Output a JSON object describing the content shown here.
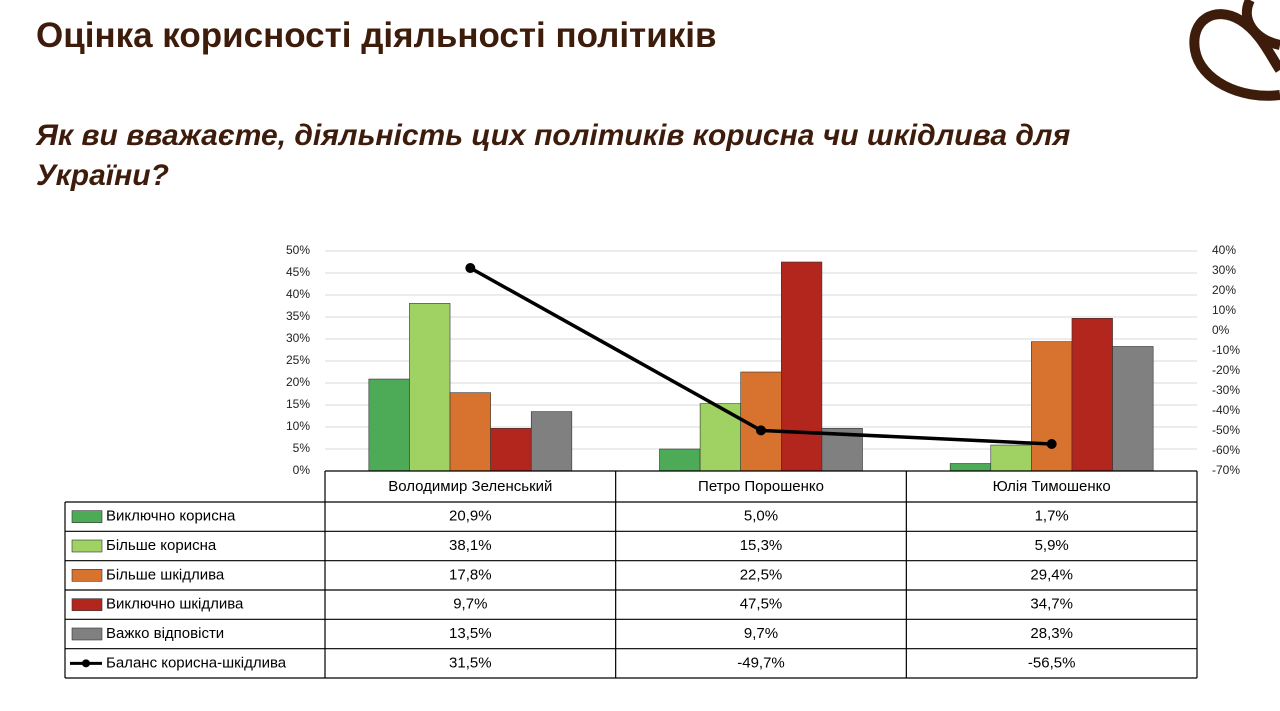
{
  "chart_data": {
    "type": "bar",
    "title": "Оцінка корисності діяльності політиків",
    "subtitle": "Як ви вважаєте, діяльність цих політиків корисна чи шкідлива для України?",
    "categories": [
      "Володимир Зеленський",
      "Петро Порошенко",
      "Юлія Тимошенко"
    ],
    "series": [
      {
        "name": "Виключно корисна",
        "color": "#4dab57",
        "values": [
          20.9,
          5.0,
          1.7
        ],
        "value_labels": [
          "20,9%",
          "5,0%",
          "1,7%"
        ]
      },
      {
        "name": "Більше корисна",
        "color": "#9fd163",
        "values": [
          38.1,
          15.3,
          5.9
        ],
        "value_labels": [
          "38,1%",
          "15,3%",
          "5,9%"
        ]
      },
      {
        "name": "Більше шкідлива",
        "color": "#d8732f",
        "values": [
          17.8,
          22.5,
          29.4
        ],
        "value_labels": [
          "17,8%",
          "22,5%",
          "29,4%"
        ]
      },
      {
        "name": "Виключно шкідлива",
        "color": "#b3261e",
        "values": [
          9.7,
          47.5,
          34.7
        ],
        "value_labels": [
          "9,7%",
          "47,5%",
          "34,7%"
        ]
      },
      {
        "name": "Важко відповісти",
        "color": "#808080",
        "values": [
          13.5,
          9.7,
          28.3
        ],
        "value_labels": [
          "13,5%",
          "9,7%",
          "28,3%"
        ]
      },
      {
        "name": "Баланс корисна-шкідлива",
        "color": "#000000",
        "type": "line",
        "axis": "y2",
        "values": [
          31.5,
          -49.7,
          -56.5
        ],
        "value_labels": [
          "31,5%",
          "-49,7%",
          "-56,5%"
        ]
      }
    ],
    "ylim": [
      0,
      50
    ],
    "yticks": [
      {
        "value": 0,
        "label": "0%"
      },
      {
        "value": 5,
        "label": "5%"
      },
      {
        "value": 10,
        "label": "10%"
      },
      {
        "value": 15,
        "label": "15%"
      },
      {
        "value": 20,
        "label": "20%"
      },
      {
        "value": 25,
        "label": "25%"
      },
      {
        "value": 30,
        "label": "30%"
      },
      {
        "value": 35,
        "label": "35%"
      },
      {
        "value": 40,
        "label": "40%"
      },
      {
        "value": 45,
        "label": "45%"
      },
      {
        "value": 50,
        "label": "50%"
      }
    ],
    "y2lim": [
      -70,
      40
    ],
    "y2ticks": [
      {
        "value": -70,
        "label": "-70%"
      },
      {
        "value": -60,
        "label": "-60%"
      },
      {
        "value": -50,
        "label": "-50%"
      },
      {
        "value": -40,
        "label": "-40%"
      },
      {
        "value": -30,
        "label": "-30%"
      },
      {
        "value": -20,
        "label": "-20%"
      },
      {
        "value": -10,
        "label": "-10%"
      },
      {
        "value": 0,
        "label": "0%"
      },
      {
        "value": 10,
        "label": "10%"
      },
      {
        "value": 20,
        "label": "20%"
      },
      {
        "value": 30,
        "label": "30%"
      },
      {
        "value": 40,
        "label": "40%"
      }
    ],
    "grid": true
  }
}
